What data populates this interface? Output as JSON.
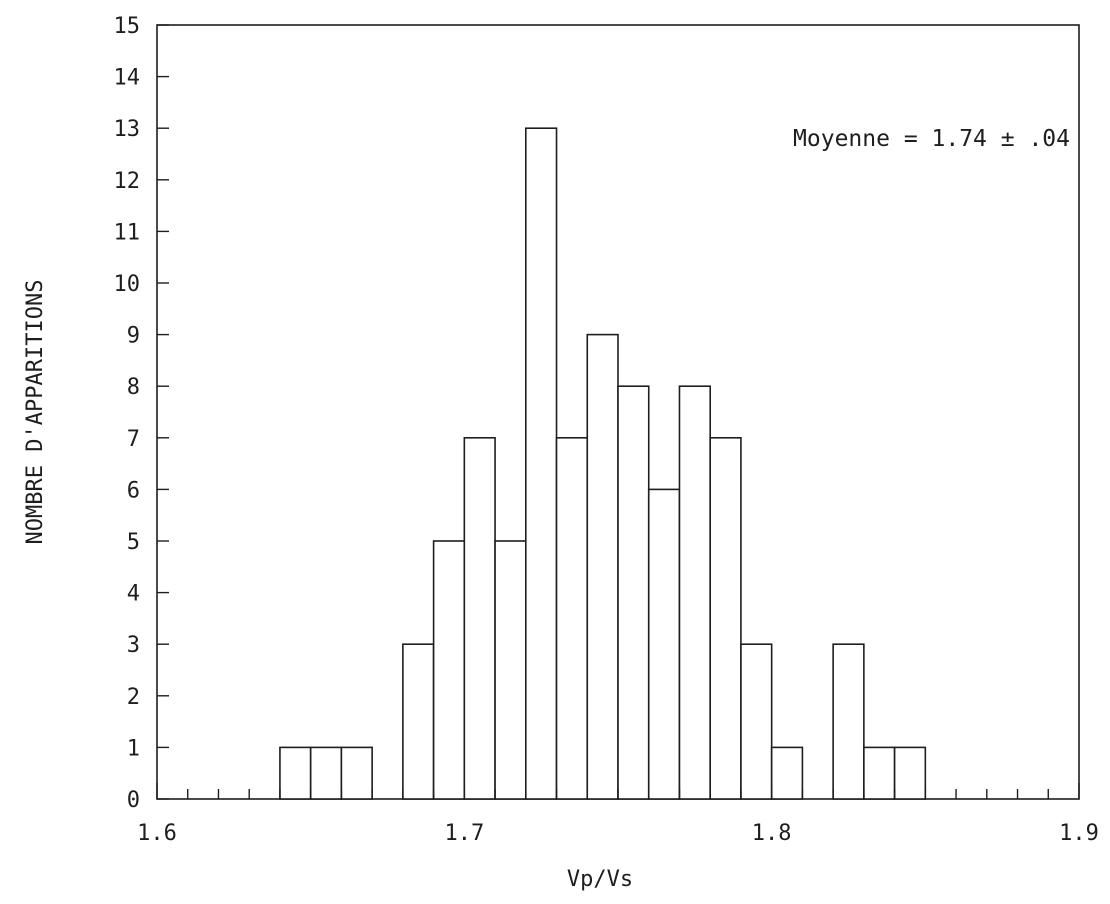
{
  "chart_data": {
    "type": "bar",
    "title": "",
    "xlabel": "Vp/Vs",
    "ylabel": "NOMBRE D'APPARITIONS",
    "xlim": [
      1.6,
      1.9
    ],
    "ylim": [
      0,
      15
    ],
    "bin_width": 0.01,
    "x_ticks": [
      "1.6",
      "1.7",
      "1.8",
      "1.9"
    ],
    "y_ticks": [
      "0",
      "1",
      "2",
      "3",
      "4",
      "5",
      "6",
      "7",
      "8",
      "9",
      "10",
      "11",
      "12",
      "13",
      "14",
      "15"
    ],
    "bins": [
      {
        "x": 1.64,
        "count": 1
      },
      {
        "x": 1.65,
        "count": 1
      },
      {
        "x": 1.66,
        "count": 1
      },
      {
        "x": 1.68,
        "count": 3
      },
      {
        "x": 1.69,
        "count": 5
      },
      {
        "x": 1.7,
        "count": 7
      },
      {
        "x": 1.71,
        "count": 5
      },
      {
        "x": 1.72,
        "count": 13
      },
      {
        "x": 1.73,
        "count": 7
      },
      {
        "x": 1.74,
        "count": 9
      },
      {
        "x": 1.75,
        "count": 8
      },
      {
        "x": 1.76,
        "count": 6
      },
      {
        "x": 1.77,
        "count": 8
      },
      {
        "x": 1.78,
        "count": 7
      },
      {
        "x": 1.79,
        "count": 3
      },
      {
        "x": 1.8,
        "count": 1
      },
      {
        "x": 1.82,
        "count": 3
      },
      {
        "x": 1.83,
        "count": 1
      },
      {
        "x": 1.84,
        "count": 1
      }
    ],
    "annotation": "Moyenne = 1.74 ± .04",
    "grid": false,
    "colors": {
      "stroke": "#1e1e1e",
      "fill": "#ffffff"
    }
  }
}
